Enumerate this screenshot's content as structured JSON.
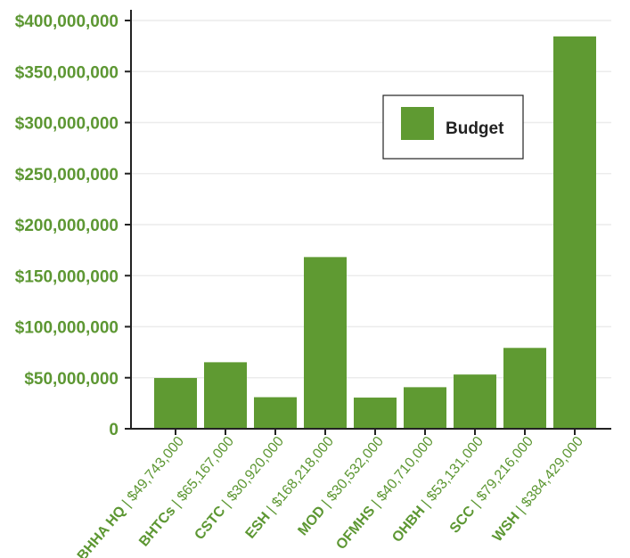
{
  "colors": {
    "bar": "#5f9a32",
    "text": "#5d9733",
    "axis": "#222222",
    "grid": "#ececec",
    "legend_border": "#222222",
    "legend_text": "#222222"
  },
  "chart_data": {
    "type": "bar",
    "title": "",
    "xlabel": "",
    "ylabel": "",
    "ylim": [
      0,
      400000000
    ],
    "y_ticks": [
      0,
      50000000,
      100000000,
      150000000,
      200000000,
      250000000,
      300000000,
      350000000,
      400000000
    ],
    "y_tick_labels": [
      "0",
      "$50,000,000",
      "$100,000,000",
      "$150,000,000",
      "$200,000,000",
      "$250,000,000",
      "$300,000,000",
      "$350,000,000",
      "$400,000,000"
    ],
    "grid": true,
    "legend_position": "top-right",
    "categories": [
      {
        "name": "BHHA HQ",
        "amount": "$49,743,000"
      },
      {
        "name": "BHTCs",
        "amount": "$65,167,000"
      },
      {
        "name": "CSTC",
        "amount": "$30,920,000"
      },
      {
        "name": "ESH",
        "amount": "$168,218,000"
      },
      {
        "name": "MOD",
        "amount": "$30,532,000"
      },
      {
        "name": "OFMHS",
        "amount": "$40,710,000"
      },
      {
        "name": "OHBH",
        "amount": "$53,131,000"
      },
      {
        "name": "SCC",
        "amount": "$79,216,000"
      },
      {
        "name": "WSH",
        "amount": "$384,429,000"
      }
    ],
    "series": [
      {
        "name": "Budget",
        "values": [
          49743000,
          65167000,
          30920000,
          168218000,
          30532000,
          40710000,
          53131000,
          79216000,
          384429000
        ]
      }
    ]
  }
}
